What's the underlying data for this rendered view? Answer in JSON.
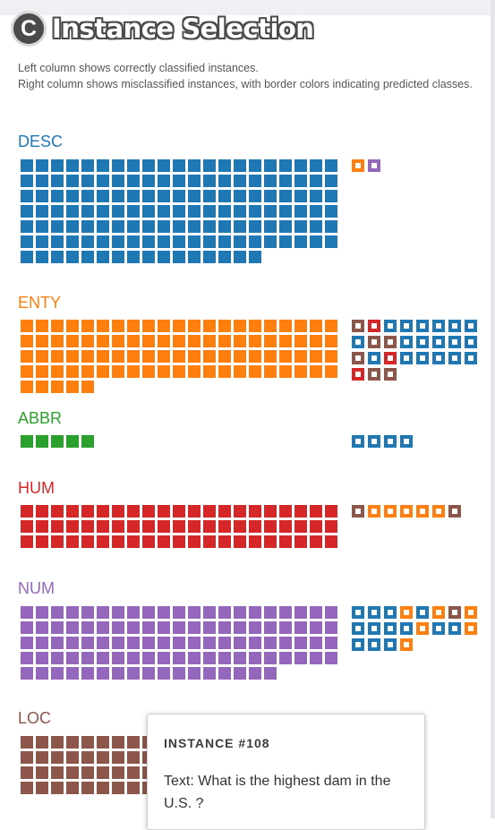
{
  "header": {
    "badge": "C",
    "title": "Instance Selection"
  },
  "description": {
    "line1": "Left column shows correctly classified instances.",
    "line2": "Right column shows misclassified instances, with border colors indicating predicted classes."
  },
  "colors": {
    "DESC": "#1f77b4",
    "ENTY": "#ff7f0e",
    "ABBR": "#2ca02c",
    "HUM": "#d62728",
    "NUM": "#9467bd",
    "LOC": "#8c564b",
    "ACTIVE": "#111111"
  },
  "classes": [
    {
      "name": "DESC",
      "correct_count": 142,
      "misclassified": [
        "ENTY",
        "NUM"
      ]
    },
    {
      "name": "ENTY",
      "correct_count": 89,
      "misclassified": [
        "LOC",
        "HUM",
        "DESC",
        "DESC",
        "DESC",
        "DESC",
        "DESC",
        "DESC",
        "DESC",
        "LOC",
        "LOC",
        "DESC",
        "DESC",
        "DESC",
        "DESC",
        "DESC",
        "LOC",
        "DESC",
        "HUM",
        "DESC",
        "DESC",
        "DESC",
        "DESC",
        "DESC",
        "HUM",
        "LOC",
        "LOC"
      ]
    },
    {
      "name": "ABBR",
      "correct_count": 5,
      "misclassified": [
        "DESC",
        "DESC",
        "DESC",
        "DESC"
      ]
    },
    {
      "name": "HUM",
      "correct_count": 63,
      "misclassified": [
        "LOC",
        "ENTY",
        "ENTY",
        "ENTY",
        "ENTY",
        "ENTY",
        "LOC"
      ]
    },
    {
      "name": "NUM",
      "correct_count": 101,
      "misclassified": [
        "DESC",
        "DESC",
        "DESC",
        "ENTY",
        "DESC",
        "ENTY",
        "LOC",
        "ENTY",
        "DESC",
        "DESC",
        "DESC",
        "DESC",
        "ENTY",
        "DESC",
        "DESC",
        "ENTY",
        "DESC",
        "DESC",
        "DESC",
        "ENTY"
      ]
    },
    {
      "name": "LOC",
      "correct_count": 77,
      "misclassified": [
        "DESC",
        "ACTIVE",
        "ENTY"
      ]
    }
  ],
  "tooltip": {
    "title": "INSTANCE #108",
    "text": "Text: What is the highest dam in the U.S. ?"
  }
}
